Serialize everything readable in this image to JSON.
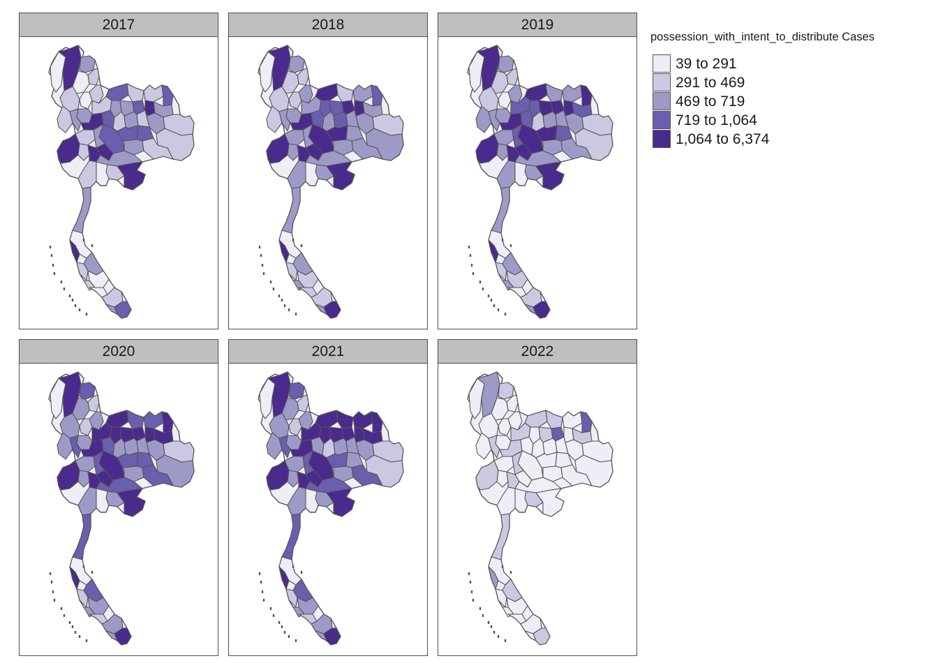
{
  "legend": {
    "title": "possession_with_intent_to_distribute Cases",
    "classes": [
      {
        "label": "39 to 291",
        "color": "#efedf5"
      },
      {
        "label": "291 to 469",
        "color": "#cbc9e2"
      },
      {
        "label": "469 to 719",
        "color": "#9e9ac8"
      },
      {
        "label": "719 to 1,064",
        "color": "#6a5eae"
      },
      {
        "label": "1,064 to 6,374",
        "color": "#4a2a8c"
      }
    ]
  },
  "panels": [
    {
      "year": "2017",
      "region_classes": [
        0,
        4,
        2,
        1,
        0,
        1,
        0,
        1,
        2,
        3,
        1,
        1,
        3,
        1,
        2,
        2,
        3,
        4,
        2,
        1,
        2,
        4,
        3,
        1,
        2,
        1,
        3,
        3,
        3,
        2,
        1,
        1,
        4,
        1,
        2,
        1,
        4,
        4,
        2,
        1,
        2,
        1,
        4,
        1,
        2
      ]
    },
    {
      "year": "2018",
      "region_classes": [
        0,
        4,
        2,
        1,
        1,
        2,
        1,
        1,
        2,
        4,
        1,
        2,
        3,
        2,
        3,
        3,
        4,
        4,
        2,
        1,
        2,
        4,
        3,
        2,
        3,
        2,
        4,
        4,
        2,
        2,
        1,
        2,
        4,
        2,
        2,
        2,
        4,
        4,
        2,
        2,
        2,
        2,
        4,
        2,
        2
      ]
    },
    {
      "year": "2019",
      "region_classes": [
        0,
        4,
        2,
        1,
        1,
        2,
        0,
        1,
        2,
        4,
        2,
        2,
        4,
        3,
        3,
        4,
        4,
        4,
        3,
        2,
        2,
        4,
        3,
        1,
        2,
        2,
        4,
        4,
        3,
        2,
        1,
        1,
        4,
        2,
        3,
        2,
        4,
        4,
        2,
        2,
        2,
        2,
        4,
        2,
        2
      ]
    },
    {
      "year": "2020",
      "region_classes": [
        0,
        4,
        3,
        1,
        2,
        2,
        1,
        2,
        2,
        4,
        3,
        3,
        4,
        4,
        4,
        4,
        4,
        4,
        4,
        2,
        3,
        4,
        3,
        2,
        2,
        2,
        4,
        3,
        3,
        2,
        1,
        2,
        4,
        2,
        3,
        2,
        4,
        4,
        2,
        3,
        3,
        2,
        4,
        2,
        3
      ]
    },
    {
      "year": "2021",
      "region_classes": [
        0,
        4,
        3,
        1,
        2,
        2,
        1,
        2,
        2,
        4,
        4,
        4,
        4,
        4,
        4,
        4,
        4,
        4,
        4,
        2,
        3,
        4,
        2,
        1,
        2,
        2,
        4,
        3,
        2,
        2,
        1,
        1,
        4,
        2,
        3,
        2,
        4,
        4,
        2,
        3,
        3,
        2,
        4,
        2,
        3
      ]
    },
    {
      "year": "2022",
      "region_classes": [
        0,
        2,
        1,
        0,
        0,
        0,
        0,
        0,
        0,
        1,
        1,
        0,
        3,
        1,
        0,
        1,
        3,
        0,
        1,
        0,
        1,
        1,
        0,
        0,
        0,
        0,
        0,
        0,
        0,
        0,
        0,
        0,
        1,
        0,
        1,
        0,
        1,
        0,
        0,
        0,
        0,
        1,
        0,
        0,
        1
      ]
    }
  ]
}
